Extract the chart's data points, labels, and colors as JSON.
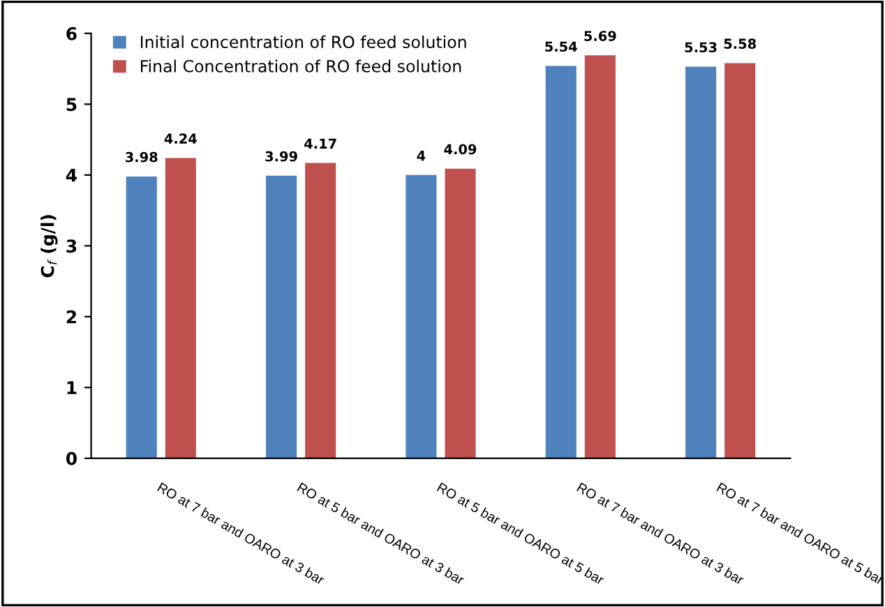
{
  "chart_data": {
    "type": "bar",
    "ylabel": "C$_{f}$ (g/l)",
    "categories": [
      "RO at 7 bar and OARO at 3 bar",
      "RO at 5 bar and OARO at 3 bar",
      "RO at 5 bar and OARO at 5 bar",
      "RO at 7 bar and OARO at 3 bar",
      "RO at 7 bar and OARO at 5 bar"
    ],
    "series": [
      {
        "name": "Initial concentration of RO feed solution",
        "color": "#4f81bd",
        "values": [
          3.98,
          3.99,
          4,
          5.54,
          5.53
        ]
      },
      {
        "name": "Final Concentration of RO feed solution",
        "color": "#c0504d",
        "values": [
          4.24,
          4.17,
          4.09,
          5.69,
          5.58
        ]
      }
    ],
    "ylim": [
      0,
      6
    ],
    "yticks": [
      0,
      1,
      2,
      3,
      4,
      5,
      6
    ],
    "grid": false,
    "legend": "top left",
    "data_labels": true
  }
}
